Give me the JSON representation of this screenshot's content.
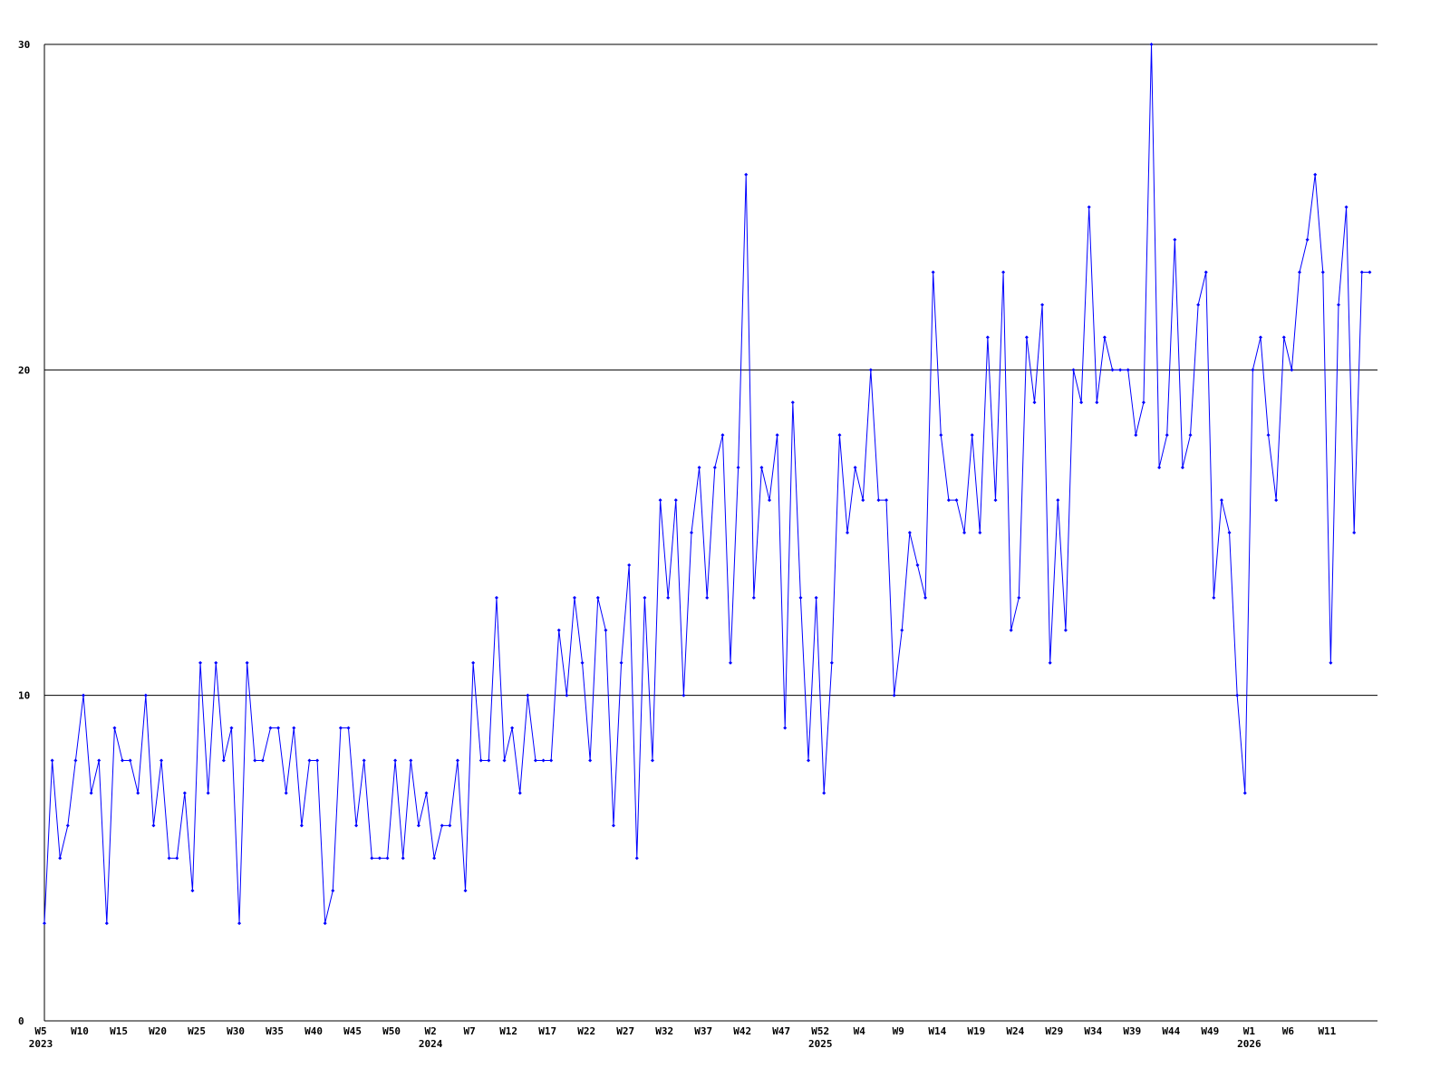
{
  "chart_data": {
    "type": "line",
    "categories": [
      "W5\n2023",
      null,
      null,
      null,
      null,
      "W10",
      null,
      null,
      null,
      null,
      "W15",
      null,
      null,
      null,
      null,
      "W20",
      null,
      null,
      null,
      null,
      "W25",
      null,
      null,
      null,
      null,
      "W30",
      null,
      null,
      null,
      null,
      "W35",
      null,
      null,
      null,
      null,
      "W40",
      null,
      null,
      null,
      null,
      "W45",
      null,
      null,
      null,
      null,
      "W50",
      null,
      null,
      null,
      null,
      "W2\n2024",
      null,
      null,
      null,
      null,
      "W7",
      null,
      null,
      null,
      null,
      "W12",
      null,
      null,
      null,
      null,
      "W17",
      null,
      null,
      null,
      null,
      "W22",
      null,
      null,
      null,
      null,
      "W27",
      null,
      null,
      null,
      null,
      "W32",
      null,
      null,
      null,
      null,
      "W37",
      null,
      null,
      null,
      null,
      "W42",
      null,
      null,
      null,
      null,
      "W47",
      null,
      null,
      null,
      null,
      "W52\n2025",
      null,
      null,
      null,
      null,
      "W4",
      null,
      null,
      null,
      null,
      "W9",
      null,
      null,
      null,
      null,
      "W14",
      null,
      null,
      null,
      null,
      "W19",
      null,
      null,
      null,
      null,
      "W24",
      null,
      null,
      null,
      null,
      "W29",
      null,
      null,
      null,
      null,
      "W34",
      null,
      null,
      null,
      null,
      "W39",
      null,
      null,
      null,
      null,
      "W44",
      null,
      null,
      null,
      null,
      "W49",
      null,
      null,
      null,
      null,
      "W1\n2026",
      null,
      null,
      null,
      null,
      "W6",
      null,
      null,
      null,
      null,
      "W11",
      null,
      null,
      null,
      null,
      null
    ],
    "series": [
      {
        "color": "#0000ff",
        "values": [
          3,
          8,
          5,
          6,
          8,
          10,
          7,
          8,
          3,
          9,
          8,
          8,
          7,
          10,
          6,
          8,
          5,
          5,
          7,
          4,
          11,
          7,
          11,
          8,
          9,
          3,
          11,
          8,
          8,
          9,
          9,
          7,
          9,
          6,
          8,
          8,
          3,
          4,
          9,
          9,
          6,
          8,
          5,
          5,
          5,
          8,
          5,
          8,
          6,
          7,
          5,
          6,
          6,
          8,
          4,
          11,
          8,
          8,
          13,
          8,
          9,
          7,
          10,
          8,
          8,
          8,
          12,
          10,
          13,
          11,
          8,
          13,
          12,
          6,
          11,
          14,
          5,
          13,
          8,
          16,
          13,
          16,
          10,
          15,
          17,
          13,
          17,
          18,
          11,
          17,
          26,
          13,
          17,
          16,
          18,
          9,
          19,
          13,
          8,
          13,
          7,
          11,
          18,
          15,
          17,
          16,
          20,
          16,
          16,
          10,
          12,
          15,
          14,
          13,
          23,
          18,
          16,
          16,
          15,
          18,
          15,
          21,
          16,
          23,
          12,
          13,
          21,
          19,
          22,
          11,
          16,
          12,
          20,
          19,
          25,
          19,
          21,
          20,
          20,
          20,
          18,
          19,
          30,
          17,
          18,
          24,
          17,
          18,
          22,
          23,
          13,
          16,
          15,
          10,
          7,
          20,
          21,
          18,
          16,
          21,
          20,
          23,
          24,
          26,
          23,
          11,
          22,
          25,
          15,
          23,
          23
        ]
      }
    ],
    "ylim": [
      0,
      30
    ],
    "yticks": [
      0,
      10,
      20,
      30
    ],
    "grid": true
  }
}
